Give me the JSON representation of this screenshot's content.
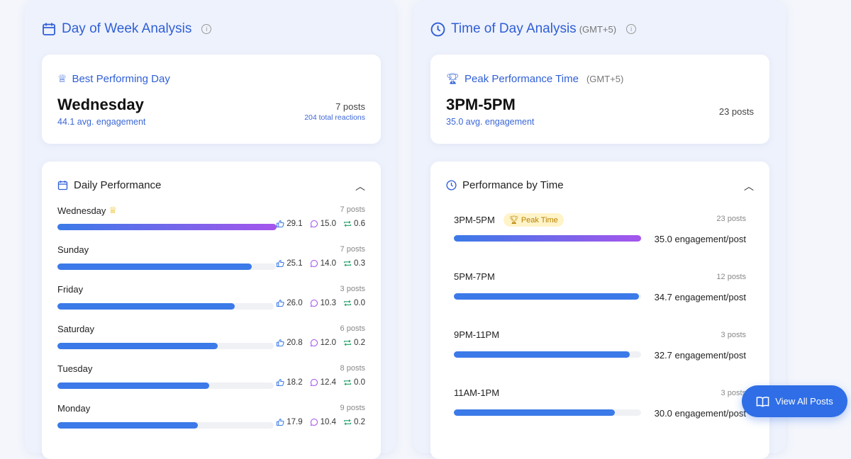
{
  "colors": {
    "accent": "#2f5fd6",
    "bar": "#3b7ae8",
    "bar_top_end": "#a555ec",
    "like": "#3b7ae8",
    "comment": "#a555ec",
    "share": "#22a06b"
  },
  "day": {
    "title": "Day of Week Analysis",
    "best": {
      "label": "Best Performing Day",
      "day": "Wednesday",
      "avg": "44.1 avg. engagement",
      "posts": "7 posts",
      "reactions": "204 total reactions"
    },
    "section_title": "Daily Performance",
    "rows": [
      {
        "name": "Wednesday",
        "posts": "7 posts",
        "likes": "29.1",
        "comments": "15.0",
        "shares": "0.6",
        "fill": 100,
        "top": true
      },
      {
        "name": "Sunday",
        "posts": "7 posts",
        "likes": "25.1",
        "comments": "14.0",
        "shares": "0.3",
        "fill": 89
      },
      {
        "name": "Friday",
        "posts": "3 posts",
        "likes": "26.0",
        "comments": "10.3",
        "shares": "0.0",
        "fill": 82
      },
      {
        "name": "Saturday",
        "posts": "6 posts",
        "likes": "20.8",
        "comments": "12.0",
        "shares": "0.2",
        "fill": 74
      },
      {
        "name": "Tuesday",
        "posts": "8 posts",
        "likes": "18.2",
        "comments": "12.4",
        "shares": "0.0",
        "fill": 70
      },
      {
        "name": "Monday",
        "posts": "9 posts",
        "likes": "17.9",
        "comments": "10.4",
        "shares": "0.2",
        "fill": 65
      }
    ]
  },
  "time": {
    "title": "Time of Day Analysis",
    "tz": "(GMT+5)",
    "peak": {
      "label": "Peak Performance Time",
      "tz": "(GMT+5)",
      "time": "3PM-5PM",
      "avg": "35.0 avg. engagement",
      "posts": "23 posts"
    },
    "section_title": "Performance by Time",
    "badge": "Peak Time",
    "rows": [
      {
        "name": "3PM-5PM",
        "posts": "23 posts",
        "eng": "35.0 engagement/post",
        "fill": 100,
        "top": true
      },
      {
        "name": "5PM-7PM",
        "posts": "12 posts",
        "eng": "34.7 engagement/post",
        "fill": 99
      },
      {
        "name": "9PM-11PM",
        "posts": "3 posts",
        "eng": "32.7 engagement/post",
        "fill": 94
      },
      {
        "name": "11AM-1PM",
        "posts": "3 posts",
        "eng": "30.0 engagement/post",
        "fill": 86
      }
    ]
  },
  "button": {
    "label": "View All Posts"
  }
}
